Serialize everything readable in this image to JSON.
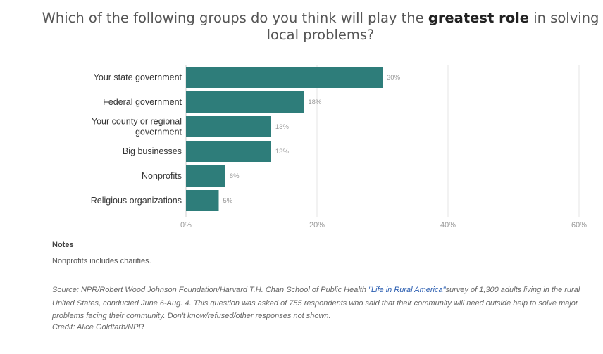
{
  "title": {
    "before": "Which of the following groups do you think will play the ",
    "bold": "greatest role",
    "after": " in solving local problems?"
  },
  "chart_data": {
    "type": "bar",
    "orientation": "horizontal",
    "categories": [
      [
        "Your state government"
      ],
      [
        "Federal government"
      ],
      [
        "Your county or regional",
        "government"
      ],
      [
        "Big businesses"
      ],
      [
        "Nonprofits"
      ],
      [
        "Religious organizations"
      ]
    ],
    "values": [
      30,
      18,
      13,
      13,
      6,
      5
    ],
    "value_labels": [
      "30%",
      "18%",
      "13%",
      "13%",
      "6%",
      "5%"
    ],
    "xlim": [
      0,
      60
    ],
    "ticks": [
      0,
      20,
      40,
      60
    ],
    "tick_labels": [
      "0%",
      "20%",
      "40%",
      "60%"
    ],
    "bar_color": "#2e7d7a",
    "grid": true
  },
  "notes": {
    "heading": "Notes",
    "text": "Nonprofits includes charities."
  },
  "source": {
    "before": "Source: NPR/Robert Wood Johnson Foundation/Harvard T.H. Chan School of Public Health ",
    "link": "\"Life in Rural America\"",
    "after": "survey of 1,300 adults living in the rural United States, conducted June 6-Aug. 4. This question was asked of 755 respondents who said that their community will need outside help to solve major problems facing their community. Don't know/refused/other responses not shown."
  },
  "credit": "Credit: Alice Goldfarb/NPR"
}
